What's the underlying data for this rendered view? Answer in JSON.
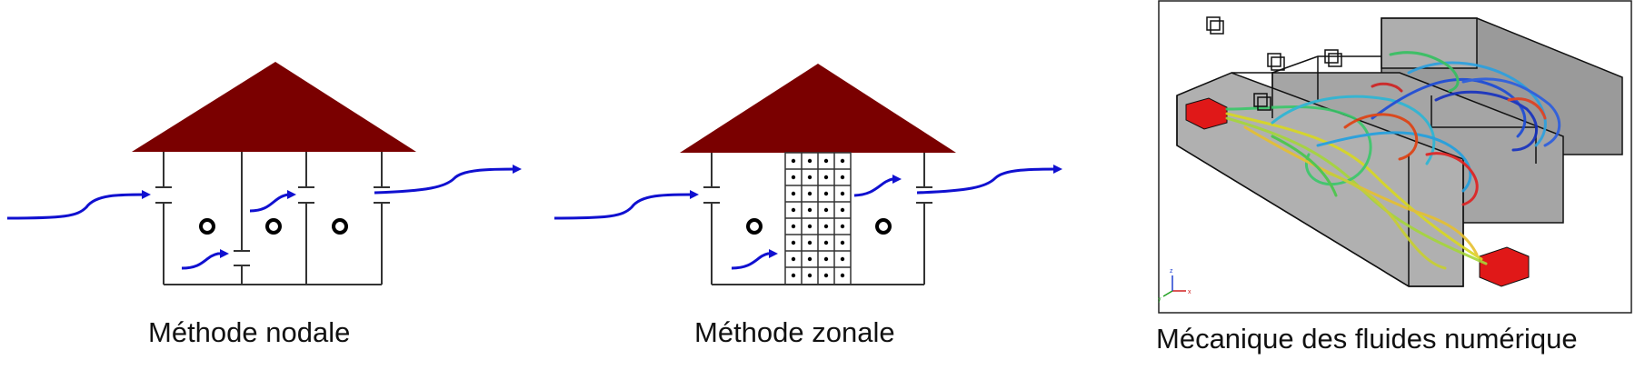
{
  "panels": [
    {
      "caption": "Méthode nodale"
    },
    {
      "caption": "Méthode zonale"
    },
    {
      "caption": "Mécanique des fluides numérique"
    }
  ],
  "colors": {
    "roof": "#7a0000",
    "walls": "#333333",
    "arrow": "#1010d0",
    "cfd_floor": "#9a9a9a",
    "cfd_inlet": "#e01818"
  },
  "icons": {
    "node": "ring",
    "flow_arrow": "curved-arrow",
    "axis_triad": "xyz-axes"
  },
  "axes_labels": {
    "x": "x",
    "y": "y",
    "z": "z"
  }
}
